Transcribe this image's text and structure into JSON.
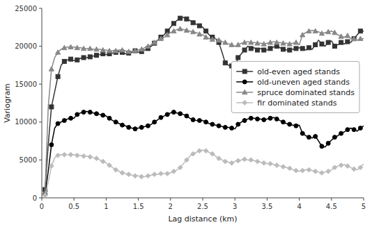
{
  "chart_data": {
    "type": "line",
    "xlabel": "Lag distance (km)",
    "ylabel": "Variogram",
    "xlim": [
      0,
      5
    ],
    "ylim": [
      0,
      25000
    ],
    "xticks": [
      0,
      0.5,
      1,
      1.5,
      2,
      2.5,
      3,
      3.5,
      4,
      4.5,
      5
    ],
    "yticks": [
      0,
      5000,
      10000,
      15000,
      20000,
      25000
    ],
    "legend": "right",
    "x": [
      0.05,
      0.1,
      0.15,
      0.2,
      0.25,
      0.3,
      0.35,
      0.4,
      0.45,
      0.5,
      0.55,
      0.6,
      0.65,
      0.7,
      0.75,
      0.8,
      0.85,
      0.9,
      0.95,
      1.0,
      1.05,
      1.1,
      1.15,
      1.2,
      1.25,
      1.3,
      1.35,
      1.4,
      1.45,
      1.5,
      1.55,
      1.6,
      1.65,
      1.7,
      1.75,
      1.8,
      1.85,
      1.9,
      1.95,
      2.0,
      2.05,
      2.1,
      2.15,
      2.2,
      2.25,
      2.3,
      2.35,
      2.4,
      2.45,
      2.5,
      2.55,
      2.6,
      2.65,
      2.7,
      2.75,
      2.8,
      2.85,
      2.9,
      2.95,
      3.0,
      3.05,
      3.1,
      3.15,
      3.2,
      3.25,
      3.3,
      3.35,
      3.4,
      3.45,
      3.5,
      3.55,
      3.6,
      3.65,
      3.7,
      3.75,
      3.8,
      3.85,
      3.9,
      3.95,
      4.0,
      4.05,
      4.1,
      4.15,
      4.2,
      4.25,
      4.3,
      4.35,
      4.4,
      4.45,
      4.5,
      4.55,
      4.6,
      4.65,
      4.7,
      4.75,
      4.8,
      4.85,
      4.9,
      4.95,
      5.0
    ],
    "series": [
      {
        "name": "old-even aged stands",
        "color": "#333333",
        "marker": "square",
        "values": [
          1100,
          7000,
          12000,
          14000,
          16000,
          17500,
          18000,
          18200,
          18300,
          18100,
          18200,
          18400,
          18500,
          18500,
          18600,
          18700,
          18800,
          18900,
          19000,
          18900,
          19000,
          19100,
          19200,
          19300,
          19200,
          19000,
          19100,
          19200,
          19400,
          19200,
          19300,
          19500,
          19700,
          20000,
          20400,
          20800,
          21200,
          21500,
          22000,
          22500,
          23000,
          23400,
          23700,
          23800,
          23600,
          23400,
          23100,
          22900,
          22700,
          22500,
          22000,
          21500,
          21200,
          21000,
          20500,
          19200,
          17800,
          17500,
          17400,
          17200,
          18500,
          19000,
          19500,
          20000,
          19700,
          19800,
          19500,
          19700,
          19500,
          19500,
          19700,
          19900,
          20000,
          19800,
          19600,
          19500,
          19500,
          19600,
          19700,
          19800,
          19700,
          19500,
          19800,
          19600,
          20200,
          20800,
          20300,
          20000,
          20500,
          20700,
          20000,
          20200,
          20500,
          20300,
          20600,
          20500,
          21000,
          21500,
          22000,
          22000
        ]
      },
      {
        "name": "old-uneven aged stands",
        "color": "#000000",
        "marker": "circle",
        "values": [
          500,
          3500,
          7000,
          9200,
          9800,
          10000,
          10200,
          10400,
          10500,
          10500,
          11000,
          11200,
          11300,
          11400,
          11300,
          11200,
          11100,
          11000,
          10900,
          10800,
          10500,
          10200,
          10000,
          9800,
          9600,
          9500,
          9300,
          9200,
          9100,
          9200,
          9300,
          9400,
          9500,
          9700,
          10000,
          10300,
          10600,
          10800,
          11000,
          11200,
          11300,
          11200,
          11100,
          11000,
          10800,
          10500,
          10300,
          10200,
          10200,
          10200,
          10000,
          9800,
          9700,
          9600,
          9500,
          9400,
          9300,
          9300,
          9200,
          9100,
          9700,
          10000,
          10200,
          10400,
          10500,
          10500,
          10400,
          10400,
          10300,
          10400,
          10500,
          10600,
          10400,
          10200,
          10000,
          9800,
          9700,
          9600,
          9500,
          9600,
          8500,
          8200,
          8000,
          7900,
          8100,
          7500,
          6800,
          6700,
          7200,
          7600,
          8000,
          8200,
          8500,
          8700,
          9000,
          9200,
          9000,
          8800,
          9200,
          9500
        ]
      },
      {
        "name": "spruce dominated stands",
        "color": "#888888",
        "marker": "triangle",
        "values": [
          600,
          12000,
          17000,
          18500,
          19200,
          19600,
          19800,
          19900,
          19900,
          19900,
          19800,
          19800,
          19700,
          19700,
          19700,
          19600,
          19600,
          19600,
          19500,
          19500,
          19400,
          19400,
          19400,
          19500,
          19500,
          19400,
          19300,
          19300,
          19400,
          19500,
          19600,
          19800,
          20000,
          20200,
          20500,
          20800,
          21000,
          21200,
          21500,
          21800,
          22000,
          22200,
          22300,
          22200,
          22100,
          22000,
          21900,
          21800,
          21600,
          21500,
          21200,
          21000,
          20900,
          21000,
          20800,
          20600,
          20500,
          20300,
          20200,
          20000,
          20200,
          20400,
          20500,
          20600,
          20500,
          20500,
          20400,
          20400,
          20300,
          20400,
          20500,
          20600,
          20500,
          20500,
          20400,
          20400,
          20300,
          20400,
          20500,
          20200,
          21500,
          21800,
          22000,
          22100,
          22000,
          21900,
          21700,
          21800,
          21900,
          22000,
          21800,
          21500,
          21300,
          21200,
          21400,
          21000,
          21000,
          20800,
          21000,
          21000
        ]
      },
      {
        "name": "fir dominated stands",
        "color": "#bbbbbb",
        "marker": "diamond",
        "values": [
          300,
          2000,
          4200,
          5300,
          5600,
          5700,
          5700,
          5700,
          5700,
          5700,
          5600,
          5600,
          5500,
          5500,
          5400,
          5300,
          5200,
          5000,
          4800,
          4600,
          4300,
          4000,
          3700,
          3500,
          3300,
          3200,
          3100,
          3000,
          2900,
          2900,
          2800,
          2800,
          2900,
          3000,
          3100,
          3100,
          3200,
          3200,
          3200,
          3300,
          3500,
          3700,
          4000,
          4500,
          5000,
          5500,
          5800,
          6000,
          6200,
          6300,
          6200,
          6000,
          5800,
          5500,
          5200,
          5000,
          4800,
          4700,
          4600,
          4800,
          4900,
          5000,
          5100,
          5000,
          5000,
          4900,
          4800,
          4700,
          4600,
          4500,
          4500,
          4400,
          4300,
          4200,
          4100,
          4000,
          3900,
          3700,
          3600,
          3500,
          3600,
          3700,
          3700,
          3600,
          3500,
          3400,
          3300,
          3400,
          3500,
          3700,
          4000,
          4200,
          4300,
          4400,
          4200,
          4000,
          3800,
          3700,
          4000,
          4500
        ]
      }
    ]
  }
}
